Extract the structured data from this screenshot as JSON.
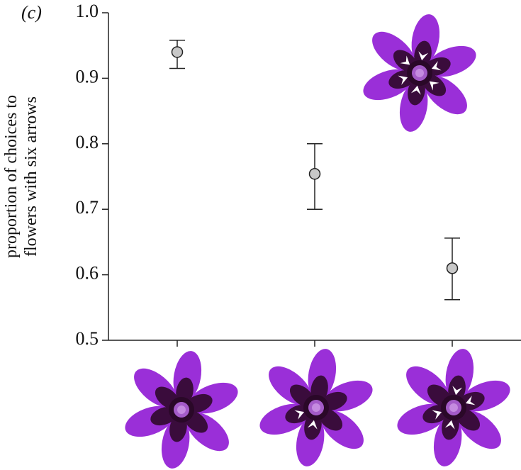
{
  "chart_data": {
    "type": "errorbar",
    "panel_label": "(c)",
    "ylabel": [
      "proportion of choices to",
      "flowers with six arrows"
    ],
    "categories": [
      null,
      null,
      null
    ],
    "values": [
      0.94,
      0.754,
      0.61
    ],
    "ci_low": [
      0.915,
      0.7,
      0.562
    ],
    "ci_high": [
      0.958,
      0.8,
      0.656
    ],
    "color": "#c8c8c8",
    "ylim": [
      0.5,
      1.0
    ],
    "yticks": [
      0.5,
      0.6,
      0.7,
      0.8,
      0.9,
      {
        "value": 1.0,
        "label": "1.0"
      }
    ],
    "grid": false
  }
}
